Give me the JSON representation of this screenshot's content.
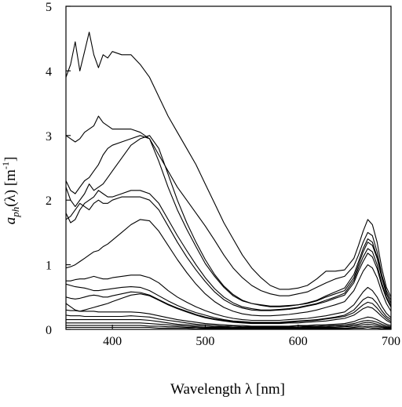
{
  "chart_data": {
    "type": "line",
    "xlabel": "Wavelength λ [nm]",
    "ylabel": {
      "symbol": "a",
      "subscript": "ph",
      "arg": "(λ) [m",
      "sup": "-1",
      "close": "]"
    },
    "xlim": [
      350,
      700
    ],
    "ylim": [
      0,
      5
    ],
    "xticks": [
      400,
      500,
      600,
      700
    ],
    "yticks": [
      0,
      1,
      2,
      3,
      4,
      5
    ],
    "x": [
      350,
      355,
      360,
      365,
      370,
      375,
      380,
      385,
      390,
      395,
      400,
      410,
      420,
      430,
      440,
      450,
      460,
      470,
      480,
      490,
      500,
      510,
      520,
      530,
      540,
      550,
      560,
      570,
      580,
      590,
      600,
      610,
      620,
      630,
      640,
      650,
      660,
      665,
      670,
      675,
      680,
      685,
      690,
      695,
      700
    ],
    "series": [
      {
        "values": [
          3.9,
          4.1,
          4.45,
          4.0,
          4.3,
          4.6,
          4.25,
          4.05,
          4.25,
          4.2,
          4.3,
          4.25,
          4.25,
          4.1,
          3.9,
          3.6,
          3.3,
          3.05,
          2.8,
          2.55,
          2.25,
          1.95,
          1.65,
          1.4,
          1.15,
          0.95,
          0.8,
          0.68,
          0.62,
          0.62,
          0.64,
          0.68,
          0.78,
          0.9,
          0.9,
          0.92,
          1.1,
          1.3,
          1.52,
          1.7,
          1.62,
          1.35,
          0.95,
          0.65,
          0.5
        ]
      },
      {
        "values": [
          3.0,
          2.95,
          2.9,
          2.95,
          3.05,
          3.1,
          3.15,
          3.3,
          3.2,
          3.15,
          3.1,
          3.1,
          3.1,
          3.05,
          2.95,
          2.7,
          2.45,
          2.2,
          2.0,
          1.8,
          1.6,
          1.38,
          1.15,
          0.95,
          0.8,
          0.68,
          0.6,
          0.55,
          0.52,
          0.52,
          0.55,
          0.58,
          0.65,
          0.72,
          0.78,
          0.82,
          0.98,
          1.15,
          1.35,
          1.5,
          1.45,
          1.2,
          0.85,
          0.6,
          0.45
        ]
      },
      {
        "values": [
          2.3,
          2.15,
          2.1,
          2.2,
          2.3,
          2.35,
          2.45,
          2.55,
          2.7,
          2.8,
          2.85,
          2.9,
          2.95,
          3.0,
          2.95,
          2.6,
          2.2,
          1.85,
          1.55,
          1.28,
          1.02,
          0.82,
          0.65,
          0.52,
          0.44,
          0.4,
          0.38,
          0.36,
          0.36,
          0.37,
          0.38,
          0.4,
          0.44,
          0.5,
          0.55,
          0.6,
          0.8,
          1.0,
          1.2,
          1.35,
          1.3,
          1.1,
          0.8,
          0.55,
          0.4
        ]
      },
      {
        "values": [
          2.2,
          2.0,
          1.9,
          2.0,
          2.1,
          2.25,
          2.15,
          2.2,
          2.25,
          2.35,
          2.45,
          2.65,
          2.85,
          2.95,
          3.0,
          2.8,
          2.4,
          2.0,
          1.65,
          1.35,
          1.08,
          0.85,
          0.67,
          0.54,
          0.45,
          0.4,
          0.37,
          0.35,
          0.35,
          0.36,
          0.38,
          0.41,
          0.45,
          0.52,
          0.58,
          0.64,
          0.85,
          1.05,
          1.25,
          1.4,
          1.35,
          1.12,
          0.82,
          0.56,
          0.4
        ]
      },
      {
        "values": [
          1.8,
          1.65,
          1.7,
          1.85,
          1.95,
          2.0,
          2.05,
          2.15,
          2.1,
          2.05,
          2.05,
          2.1,
          2.15,
          2.15,
          2.1,
          1.95,
          1.7,
          1.45,
          1.22,
          1.0,
          0.8,
          0.63,
          0.5,
          0.41,
          0.35,
          0.32,
          0.3,
          0.3,
          0.31,
          0.32,
          0.34,
          0.37,
          0.4,
          0.45,
          0.5,
          0.56,
          0.76,
          0.95,
          1.12,
          1.25,
          1.2,
          1.0,
          0.72,
          0.5,
          0.36
        ]
      },
      {
        "values": [
          1.7,
          1.75,
          1.85,
          1.95,
          1.9,
          1.85,
          1.95,
          2.0,
          1.95,
          1.95,
          2.0,
          2.05,
          2.05,
          2.05,
          2.0,
          1.85,
          1.6,
          1.35,
          1.12,
          0.92,
          0.74,
          0.58,
          0.46,
          0.38,
          0.33,
          0.3,
          0.29,
          0.29,
          0.3,
          0.31,
          0.33,
          0.36,
          0.39,
          0.43,
          0.48,
          0.53,
          0.72,
          0.9,
          1.05,
          1.18,
          1.12,
          0.94,
          0.68,
          0.48,
          0.34
        ]
      },
      {
        "values": [
          0.95,
          0.97,
          1.0,
          1.05,
          1.1,
          1.15,
          1.2,
          1.22,
          1.28,
          1.32,
          1.38,
          1.5,
          1.62,
          1.7,
          1.68,
          1.52,
          1.3,
          1.08,
          0.88,
          0.7,
          0.55,
          0.43,
          0.34,
          0.28,
          0.24,
          0.22,
          0.21,
          0.21,
          0.22,
          0.23,
          0.25,
          0.27,
          0.3,
          0.34,
          0.38,
          0.43,
          0.6,
          0.75,
          0.9,
          1.0,
          0.95,
          0.8,
          0.58,
          0.4,
          0.28
        ]
      },
      {
        "values": [
          0.75,
          0.75,
          0.77,
          0.78,
          0.78,
          0.8,
          0.82,
          0.8,
          0.78,
          0.78,
          0.8,
          0.82,
          0.84,
          0.84,
          0.8,
          0.72,
          0.6,
          0.5,
          0.42,
          0.35,
          0.29,
          0.24,
          0.2,
          0.17,
          0.15,
          0.14,
          0.14,
          0.14,
          0.14,
          0.15,
          0.16,
          0.17,
          0.19,
          0.21,
          0.24,
          0.27,
          0.38,
          0.48,
          0.58,
          0.65,
          0.6,
          0.5,
          0.36,
          0.25,
          0.18
        ]
      },
      {
        "values": [
          0.7,
          0.68,
          0.66,
          0.65,
          0.64,
          0.62,
          0.6,
          0.6,
          0.61,
          0.62,
          0.63,
          0.65,
          0.66,
          0.65,
          0.6,
          0.52,
          0.44,
          0.37,
          0.31,
          0.26,
          0.22,
          0.18,
          0.15,
          0.13,
          0.12,
          0.11,
          0.11,
          0.11,
          0.11,
          0.12,
          0.13,
          0.14,
          0.15,
          0.17,
          0.19,
          0.22,
          0.3,
          0.38,
          0.46,
          0.5,
          0.48,
          0.4,
          0.29,
          0.2,
          0.15
        ]
      },
      {
        "values": [
          0.5,
          0.48,
          0.47,
          0.48,
          0.5,
          0.52,
          0.53,
          0.52,
          0.5,
          0.5,
          0.52,
          0.55,
          0.58,
          0.57,
          0.53,
          0.46,
          0.39,
          0.33,
          0.28,
          0.23,
          0.19,
          0.16,
          0.14,
          0.12,
          0.11,
          0.1,
          0.1,
          0.1,
          0.1,
          0.11,
          0.12,
          0.13,
          0.14,
          0.16,
          0.18,
          0.2,
          0.26,
          0.32,
          0.38,
          0.42,
          0.4,
          0.33,
          0.24,
          0.17,
          0.12
        ]
      },
      {
        "values": [
          0.4,
          0.35,
          0.3,
          0.28,
          0.3,
          0.32,
          0.34,
          0.36,
          0.38,
          0.4,
          0.43,
          0.48,
          0.53,
          0.55,
          0.52,
          0.45,
          0.38,
          0.32,
          0.27,
          0.22,
          0.18,
          0.15,
          0.13,
          0.11,
          0.1,
          0.09,
          0.09,
          0.09,
          0.09,
          0.1,
          0.1,
          0.11,
          0.12,
          0.13,
          0.15,
          0.17,
          0.22,
          0.27,
          0.32,
          0.35,
          0.33,
          0.27,
          0.2,
          0.14,
          0.1
        ]
      },
      {
        "values": [
          0.3,
          0.29,
          0.29,
          0.28,
          0.28,
          0.28,
          0.28,
          0.27,
          0.27,
          0.27,
          0.27,
          0.27,
          0.27,
          0.26,
          0.24,
          0.21,
          0.18,
          0.15,
          0.13,
          0.11,
          0.09,
          0.08,
          0.07,
          0.06,
          0.06,
          0.05,
          0.05,
          0.05,
          0.05,
          0.05,
          0.06,
          0.06,
          0.07,
          0.07,
          0.08,
          0.09,
          0.12,
          0.15,
          0.17,
          0.19,
          0.18,
          0.15,
          0.11,
          0.08,
          0.06
        ]
      },
      {
        "values": [
          0.22,
          0.21,
          0.21,
          0.21,
          0.2,
          0.2,
          0.2,
          0.2,
          0.2,
          0.2,
          0.2,
          0.2,
          0.21,
          0.2,
          0.19,
          0.16,
          0.14,
          0.12,
          0.1,
          0.08,
          0.07,
          0.06,
          0.05,
          0.05,
          0.04,
          0.04,
          0.04,
          0.04,
          0.04,
          0.04,
          0.05,
          0.05,
          0.05,
          0.06,
          0.06,
          0.07,
          0.09,
          0.11,
          0.13,
          0.14,
          0.13,
          0.11,
          0.08,
          0.06,
          0.04
        ]
      },
      {
        "values": [
          0.15,
          0.15,
          0.15,
          0.15,
          0.15,
          0.15,
          0.15,
          0.15,
          0.15,
          0.15,
          0.15,
          0.15,
          0.15,
          0.15,
          0.14,
          0.12,
          0.1,
          0.08,
          0.07,
          0.06,
          0.05,
          0.04,
          0.04,
          0.03,
          0.03,
          0.03,
          0.03,
          0.03,
          0.03,
          0.03,
          0.03,
          0.04,
          0.04,
          0.04,
          0.05,
          0.05,
          0.07,
          0.08,
          0.1,
          0.11,
          0.1,
          0.08,
          0.06,
          0.04,
          0.03
        ]
      },
      {
        "values": [
          0.1,
          0.1,
          0.1,
          0.1,
          0.1,
          0.1,
          0.1,
          0.1,
          0.1,
          0.1,
          0.1,
          0.1,
          0.1,
          0.1,
          0.09,
          0.08,
          0.07,
          0.06,
          0.05,
          0.04,
          0.03,
          0.03,
          0.03,
          0.02,
          0.02,
          0.02,
          0.02,
          0.02,
          0.02,
          0.02,
          0.02,
          0.03,
          0.03,
          0.03,
          0.03,
          0.04,
          0.05,
          0.06,
          0.07,
          0.08,
          0.07,
          0.06,
          0.04,
          0.03,
          0.02
        ]
      },
      {
        "values": [
          0.06,
          0.06,
          0.06,
          0.06,
          0.06,
          0.06,
          0.06,
          0.06,
          0.06,
          0.06,
          0.06,
          0.06,
          0.06,
          0.06,
          0.05,
          0.05,
          0.04,
          0.04,
          0.03,
          0.03,
          0.02,
          0.02,
          0.02,
          0.02,
          0.01,
          0.01,
          0.01,
          0.01,
          0.01,
          0.01,
          0.01,
          0.02,
          0.02,
          0.02,
          0.02,
          0.02,
          0.03,
          0.04,
          0.04,
          0.05,
          0.04,
          0.04,
          0.03,
          0.02,
          0.01
        ]
      },
      {
        "values": [
          0.03,
          0.03,
          0.03,
          0.03,
          0.03,
          0.03,
          0.03,
          0.03,
          0.03,
          0.03,
          0.03,
          0.03,
          0.03,
          0.03,
          0.03,
          0.02,
          0.02,
          0.02,
          0.02,
          0.01,
          0.01,
          0.01,
          0.01,
          0.01,
          0.01,
          0.01,
          0.01,
          0.01,
          0.01,
          0.01,
          0.01,
          0.01,
          0.01,
          0.01,
          0.01,
          0.01,
          0.02,
          0.02,
          0.02,
          0.03,
          0.02,
          0.02,
          0.01,
          0.01,
          0.01
        ]
      }
    ],
    "grid": false,
    "legend": "none",
    "line_color": "#000000",
    "background": "#ffffff"
  }
}
